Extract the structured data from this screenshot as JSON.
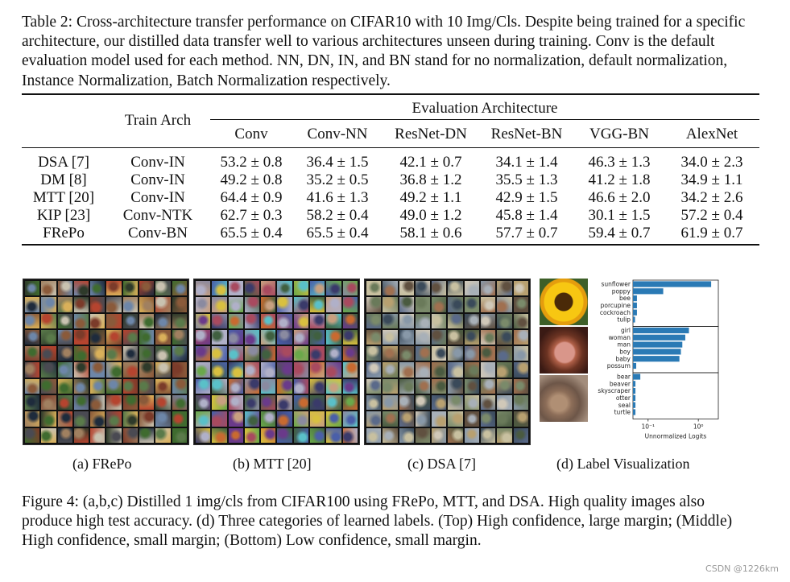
{
  "table_caption": "Table 2: Cross-architecture transfer performance on CIFAR10 with 10 Img/Cls. Despite being trained for a specific architecture, our distilled data transfer well to various architectures unseen during training. Conv is the default evaluation model used for each method. NN, DN, IN, and BN stand for no normalization, default normalization, Instance Normalization, Batch Normalization respectively.",
  "table": {
    "train_arch_header": "Train Arch",
    "eval_header": "Evaluation Architecture",
    "columns": [
      "Conv",
      "Conv-NN",
      "ResNet-DN",
      "ResNet-BN",
      "VGG-BN",
      "AlexNet"
    ],
    "rows": [
      {
        "method": "DSA [7]",
        "arch": "Conv-IN",
        "values": [
          "53.2 ± 0.8",
          "36.4 ± 1.5",
          "42.1 ± 0.7",
          "34.1 ± 1.4",
          "46.3 ± 1.3",
          "34.0 ± 2.3"
        ],
        "bold": false
      },
      {
        "method": "DM [8]",
        "arch": "Conv-IN",
        "values": [
          "49.2 ± 0.8",
          "35.2 ± 0.5",
          "36.8 ± 1.2",
          "35.5 ± 1.3",
          "41.2 ± 1.8",
          "34.9 ± 1.1"
        ],
        "bold": false
      },
      {
        "method": "MTT [20]",
        "arch": "Conv-IN",
        "values": [
          "64.4 ± 0.9",
          "41.6 ± 1.3",
          "49.2 ± 1.1",
          "42.9 ± 1.5",
          "46.6 ± 2.0",
          "34.2 ± 2.6"
        ],
        "bold": false
      },
      {
        "method": "KIP [23]",
        "arch": "Conv-NTK",
        "values": [
          "62.7 ± 0.3",
          "58.2 ± 0.4",
          "49.0 ± 1.2",
          "45.8 ± 1.4",
          "30.1 ± 1.5",
          "57.2 ± 0.4"
        ],
        "bold": false
      },
      {
        "method": "FRePo",
        "arch": "Conv-BN",
        "values": [
          "65.5 ± 0.4",
          "65.5 ± 0.4",
          "58.1 ± 0.6",
          "57.7 ± 0.7",
          "59.4 ± 0.7",
          "61.9 ± 0.7"
        ],
        "bold": true
      }
    ]
  },
  "subcaptions": {
    "a": "(a) FRePo",
    "b": "(b) MTT [20]",
    "c": "(c) DSA [7]",
    "d": "(d) Label Visualization"
  },
  "figure_caption": "Figure 4: (a,b,c) Distilled 1 img/cls from CIFAR100 using FRePo, MTT, and DSA. High quality images also produce high test accuracy. (d) Three categories of learned labels. (Top) High confidence, large margin; (Middle) High confidence, small margin; (Bottom) Low confidence, small margin.",
  "watermark": "CSDN @1226km",
  "chart_data": {
    "type": "bar",
    "orientation": "horizontal",
    "xscale": "log",
    "xlabel": "Unnormalized Logits",
    "xticks": [
      "10⁻¹",
      "10⁰"
    ],
    "xlim": [
      0.05,
      2.5
    ],
    "bar_color": "#2a7ab5",
    "groups": [
      {
        "categories": [
          "sunflower",
          "poppy",
          "bee",
          "porcupine",
          "cockroach",
          "tulip"
        ],
        "values": [
          1.8,
          0.2,
          0.06,
          0.06,
          0.06,
          0.055
        ]
      },
      {
        "categories": [
          "girl",
          "woman",
          "man",
          "boy",
          "baby",
          "possum"
        ],
        "values": [
          0.65,
          0.55,
          0.48,
          0.45,
          0.42,
          0.058
        ]
      },
      {
        "categories": [
          "bear",
          "beaver",
          "skyscraper",
          "otter",
          "seal",
          "turtle"
        ],
        "values": [
          0.07,
          0.056,
          0.056,
          0.056,
          0.056,
          0.056
        ]
      }
    ]
  }
}
